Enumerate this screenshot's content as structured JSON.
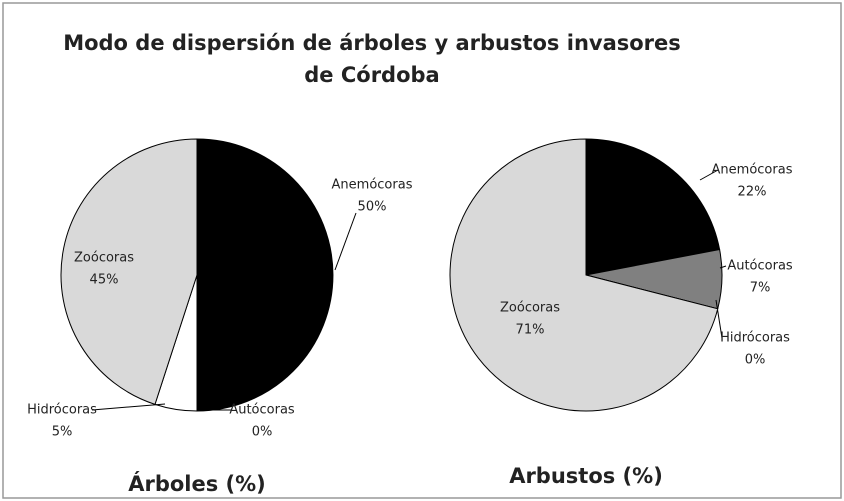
{
  "title": [
    "Modo de dispersión de árboles y arbustos invasores",
    "de Córdoba"
  ],
  "chart_data": [
    {
      "type": "pie",
      "title": "Árboles (%)",
      "categories": [
        "Anemócoras",
        "Autócoras",
        "Hidrócoras",
        "Zoócoras"
      ],
      "values": [
        50,
        0,
        5,
        45
      ],
      "value_labels": [
        "50%",
        "0%",
        "5%",
        "45%"
      ],
      "colors": [
        "#000000",
        "#808080",
        "#ffffff",
        "#d9d9d9"
      ]
    },
    {
      "type": "pie",
      "title": "Arbustos (%)",
      "categories": [
        "Anemócoras",
        "Autócoras",
        "Hidrócoras",
        "Zoócoras"
      ],
      "values": [
        22,
        7,
        0,
        71
      ],
      "value_labels": [
        "22%",
        "7%",
        "0%",
        "71%"
      ],
      "colors": [
        "#000000",
        "#808080",
        "#ffffff",
        "#d9d9d9"
      ]
    }
  ]
}
